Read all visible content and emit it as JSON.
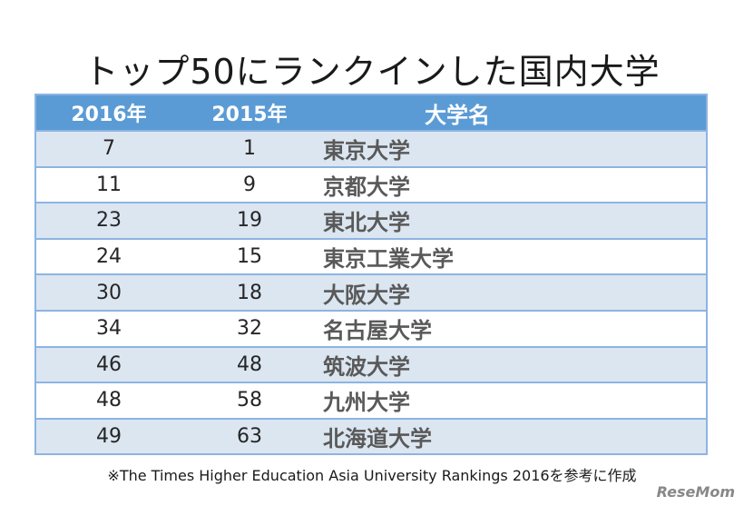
{
  "header": {
    "title": "トップ50にランクインした国内大学"
  },
  "table": {
    "columns": [
      "2016年",
      "2015年",
      "大学名"
    ],
    "rows": [
      [
        7,
        1,
        "東京大学"
      ],
      [
        11,
        9,
        "京都大学"
      ],
      [
        23,
        19,
        "東北大学"
      ],
      [
        24,
        15,
        "東京工業大学"
      ],
      [
        30,
        18,
        "大阪大学"
      ],
      [
        34,
        32,
        "名古屋大学"
      ],
      [
        46,
        48,
        "筑波大学"
      ],
      [
        48,
        58,
        "九州大学"
      ],
      [
        49,
        63,
        "北海道大学"
      ]
    ]
  },
  "footer": {
    "note": "※The Times Higher Education Asia University Rankings 2016を参考に作成",
    "watermark": "ReseMom"
  }
}
